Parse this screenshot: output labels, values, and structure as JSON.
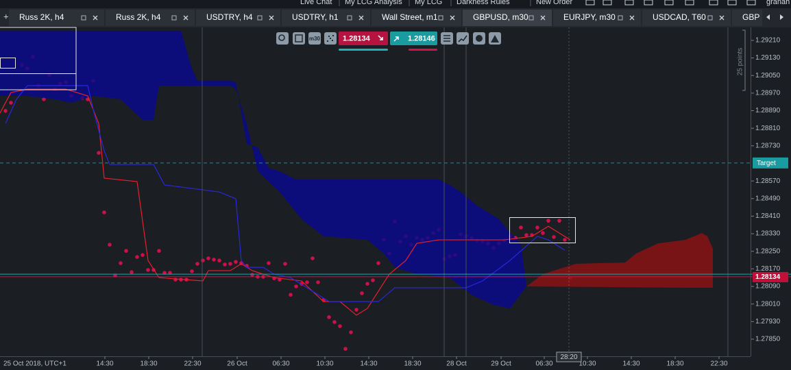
{
  "menu": [
    "Live Chat",
    "My LCG Analysis",
    "My LCG",
    "Darkness Rules",
    "New Order",
    "granah"
  ],
  "tabs": [
    {
      "label": "Russ 2K, h4",
      "active": false
    },
    {
      "label": "Russ 2K, h4",
      "active": false
    },
    {
      "label": "USDTRY, h4",
      "active": false
    },
    {
      "label": "USDTRY, h1",
      "active": false
    },
    {
      "label": "Wall Street, m1",
      "active": false
    },
    {
      "label": "GBPUSD, m30",
      "active": true
    },
    {
      "label": "EURJPY, m30",
      "active": false
    },
    {
      "label": "USDCAD, T60",
      "active": false
    },
    {
      "label": "GBP",
      "active": false
    }
  ],
  "toolbar_timeframe": "m30",
  "quote": {
    "bid": 1.28134,
    "ask": 1.28146
  },
  "scale_note": "25 points",
  "cursor_time": "28:20",
  "chart_data": {
    "type": "ichimoku",
    "date_label": "25 Oct 2018, UTC+1",
    "xlim": [
      0,
      136.875
    ],
    "ylim": [
      1.27772,
      1.29269
    ],
    "yticks": [
      {
        "value": 1.2921,
        "label": "1.29210"
      },
      {
        "value": 1.2913,
        "label": "1.29130"
      },
      {
        "value": 1.2905,
        "label": "1.29050"
      },
      {
        "value": 1.2897,
        "label": "1.28970"
      },
      {
        "value": 1.2889,
        "label": "1.28890"
      },
      {
        "value": 1.2881,
        "label": "1.28810"
      },
      {
        "value": 1.2873,
        "label": "1.28730"
      },
      {
        "value": 1.2857,
        "label": "1.28570"
      },
      {
        "value": 1.2849,
        "label": "1.28490"
      },
      {
        "value": 1.2841,
        "label": "1.28410"
      },
      {
        "value": 1.2833,
        "label": "1.28330"
      },
      {
        "value": 1.2825,
        "label": "1.28250"
      },
      {
        "value": 1.2817,
        "label": "1.28170"
      },
      {
        "value": 1.2809,
        "label": "1.28090"
      },
      {
        "value": 1.2801,
        "label": "1.28010"
      },
      {
        "value": 1.2793,
        "label": "1.27930"
      },
      {
        "value": 1.2785,
        "label": "1.27850"
      }
    ],
    "xticks": [
      {
        "value": 19.125,
        "label": "14:30"
      },
      {
        "value": 27.125,
        "label": "18:30"
      },
      {
        "value": 35.125,
        "label": "22:30"
      },
      {
        "value": 43.25,
        "label": "26 Oct"
      },
      {
        "value": 51.25,
        "label": "06:30"
      },
      {
        "value": 59.25,
        "label": "10:30"
      },
      {
        "value": 67.25,
        "label": "14:30"
      },
      {
        "value": 75.25,
        "label": "18:30"
      },
      {
        "value": 83.25,
        "label": "28 Oct"
      },
      {
        "value": 91.375,
        "label": "29 Oct"
      },
      {
        "value": 99.25,
        "label": "06:30"
      },
      {
        "value": 107.125,
        "label": "10:30"
      },
      {
        "value": 115.125,
        "label": "14:30"
      },
      {
        "value": 123.125,
        "label": "18:30"
      },
      {
        "value": 131.125,
        "label": "22:30"
      }
    ],
    "target": {
      "label": "Target",
      "value": 1.28652
    },
    "cursor_x": 103.75,
    "cloud_up": {
      "color": "#0a0a8e",
      "upper": {
        "x": [
          0,
          33,
          35,
          36,
          42,
          43,
          45,
          47,
          49,
          51,
          54,
          80,
          82,
          84,
          87,
          91,
          93,
          95,
          96
        ],
        "values": [
          1.29254,
          1.29254,
          1.29082,
          1.29026,
          1.29026,
          1.2902,
          1.28739,
          1.28723,
          1.2863,
          1.28614,
          1.28577,
          1.28577,
          1.28552,
          1.2852,
          1.28458,
          1.28396,
          1.28333,
          1.28286,
          1.2809
        ]
      },
      "lower": {
        "x": [
          0,
          5,
          10,
          13,
          17,
          22,
          26,
          28,
          29,
          36,
          42,
          43,
          45,
          47,
          51,
          55,
          59,
          67,
          70,
          72,
          76,
          82,
          86,
          90,
          93,
          96
        ],
        "values": [
          1.28957,
          1.28957,
          1.28942,
          1.28926,
          1.28957,
          1.28942,
          1.28848,
          1.28848,
          1.29004,
          1.29004,
          1.29004,
          1.28988,
          1.28832,
          1.28614,
          1.2852,
          1.28396,
          1.28318,
          1.28302,
          1.2824,
          1.28177,
          1.28146,
          1.2813,
          1.28052,
          1.28006,
          1.2799,
          1.2809
        ]
      }
    },
    "cloud_down": {
      "color": "#8e1212",
      "upper": {
        "x": [
          96,
          99,
          101,
          105,
          114,
          116,
          120,
          125,
          128,
          129,
          130
        ],
        "values": [
          1.2809,
          1.28146,
          1.28162,
          1.28193,
          1.28199,
          1.2824,
          1.28286,
          1.28302,
          1.28333,
          1.28318,
          1.28262
        ]
      },
      "lower": {
        "x": [
          96,
          125,
          130
        ],
        "values": [
          1.2809,
          1.28084,
          1.28084
        ]
      }
    },
    "series": [
      {
        "color": "#e8202c",
        "x": [
          0,
          2,
          5,
          12,
          16,
          18,
          19,
          25,
          27,
          29,
          37,
          38,
          42,
          44,
          46,
          50,
          55,
          59,
          62,
          65,
          67,
          71,
          74,
          76,
          80,
          92,
          97,
          100,
          102,
          104
        ],
        "values": [
          1.28879,
          1.28973,
          1.28988,
          1.28988,
          1.28957,
          1.28832,
          1.28583,
          1.28567,
          1.28208,
          1.2813,
          1.28115,
          1.28162,
          1.28162,
          1.28193,
          1.28162,
          1.2813,
          1.28115,
          1.28021,
          1.28021,
          1.27959,
          1.2799,
          1.28146,
          1.28208,
          1.28286,
          1.28302,
          1.28302,
          1.28318,
          1.28364,
          1.28333,
          1.28302
        ]
      },
      {
        "color": "#2828e0",
        "x": [
          1,
          3,
          5,
          16,
          17,
          19,
          20,
          28,
          30,
          40,
          43,
          44,
          45,
          48,
          50,
          53,
          56,
          60,
          69,
          72,
          85,
          88,
          93,
          98,
          100,
          103
        ],
        "values": [
          1.28832,
          1.28942,
          1.29004,
          1.29004,
          1.28895,
          1.28708,
          1.28645,
          1.28645,
          1.28552,
          1.2852,
          1.28489,
          1.28208,
          1.28177,
          1.28177,
          1.28146,
          1.2813,
          1.28084,
          1.28021,
          1.28021,
          1.28084,
          1.28084,
          1.28115,
          1.28208,
          1.28318,
          1.28302,
          1.28255
        ]
      }
    ],
    "dots": {
      "color": "#cc1048",
      "x": [
        1,
        2,
        4,
        5,
        6,
        7,
        8,
        9,
        10,
        11,
        12,
        13,
        15,
        16,
        17,
        18,
        19,
        20,
        21,
        22,
        23,
        24,
        25,
        26,
        27,
        28,
        29,
        30,
        31,
        32,
        33,
        34,
        35,
        36,
        37,
        38,
        39,
        40,
        41,
        42,
        43,
        44,
        45,
        46,
        47,
        48,
        49,
        50,
        51,
        52,
        53,
        54,
        55,
        56,
        57,
        58,
        59,
        60,
        61,
        62,
        63,
        64,
        65,
        66,
        67,
        68,
        69,
        70,
        71,
        72,
        73,
        74,
        75,
        76,
        77,
        78,
        79,
        80,
        81,
        82,
        83,
        84,
        85,
        86,
        87,
        88,
        89,
        90,
        91,
        92,
        93,
        94,
        95,
        96,
        97,
        98,
        99,
        100,
        101,
        102,
        103,
        104
      ],
      "values": [
        1.28889,
        1.28926,
        1.29098,
        1.29082,
        1.29135,
        1.29004,
        1.28942,
        1.29051,
        1.28988,
        1.29013,
        1.2902,
        1.28957,
        1.28948,
        1.28942,
        1.29026,
        1.28698,
        1.28427,
        1.2828,
        1.2814,
        1.28196,
        1.28252,
        1.28155,
        1.28224,
        1.28233,
        1.28165,
        1.28165,
        1.28252,
        1.28152,
        1.28152,
        1.28121,
        1.28121,
        1.28121,
        1.28159,
        1.28193,
        1.28208,
        1.28218,
        1.28212,
        1.28208,
        1.2819,
        1.28193,
        1.28202,
        1.28196,
        1.28184,
        1.28143,
        1.28134,
        1.28134,
        1.28196,
        1.28127,
        1.28121,
        1.28193,
        1.28052,
        1.2809,
        1.28102,
        1.28109,
        1.28218,
        1.28109,
        1.28028,
        1.2795,
        1.27928,
        1.27909,
        1.27806,
        1.27881,
        1.27984,
        1.28059,
        1.28102,
        1.28118,
        1.28196,
        1.28302,
        1.2824,
        1.28386,
        1.28293,
        1.28318,
        1.2828,
        1.28311,
        1.28302,
        1.28311,
        1.28333,
        1.28349,
        1.28215,
        1.28227,
        1.28233,
        1.28327,
        1.28318,
        1.28311,
        1.28299,
        1.28296,
        1.28286,
        1.28265,
        1.28286,
        1.28299,
        1.28318,
        1.28311,
        1.28358,
        1.28324,
        1.28324,
        1.28358,
        1.28333,
        1.28389,
        1.28315,
        1.28389,
        1.28302,
        1.28127
      ]
    }
  }
}
